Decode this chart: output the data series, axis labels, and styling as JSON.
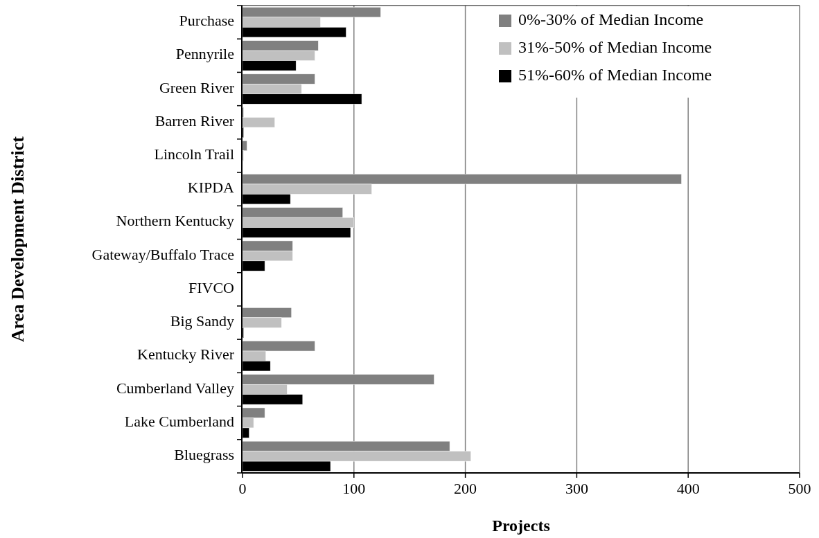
{
  "chart_data": {
    "type": "bar",
    "orientation": "horizontal",
    "xlabel": "Projects",
    "ylabel": "Area Development District",
    "categories": [
      "Purchase",
      "Pennyrile",
      "Green River",
      "Barren River",
      "Lincoln Trail",
      "KIPDA",
      "Northern Kentucky",
      "Gateway/Buffalo Trace",
      "FIVCO",
      "Big Sandy",
      "Kentucky River",
      "Cumberland Valley",
      "Lake Cumberland",
      "Bluegrass"
    ],
    "series": [
      {
        "name": "0%-30% of Median Income",
        "color": "#808080",
        "values": [
          124,
          68,
          65,
          1,
          4,
          394,
          90,
          45,
          0,
          44,
          65,
          172,
          20,
          186
        ]
      },
      {
        "name": "31%-50% of Median Income",
        "color": "#c0c0c0",
        "values": [
          70,
          65,
          53,
          29,
          1,
          116,
          100,
          45,
          0,
          35,
          21,
          40,
          10,
          205
        ]
      },
      {
        "name": "51%-60% of Median Income",
        "color": "#000000",
        "values": [
          93,
          48,
          107,
          1,
          0,
          43,
          97,
          20,
          0,
          1,
          25,
          54,
          6,
          79
        ]
      }
    ],
    "xlim": [
      0,
      500
    ],
    "xticks": [
      0,
      100,
      200,
      300,
      400,
      500
    ],
    "grid": "x",
    "legend": "top right"
  }
}
